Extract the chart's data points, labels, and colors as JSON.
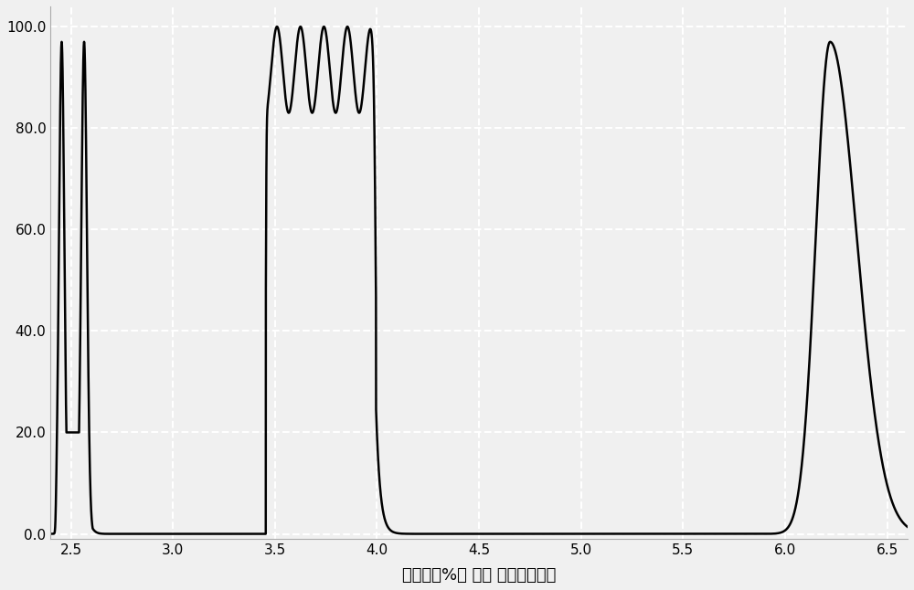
{
  "xlabel": "透过率（%） 对应 波长（微米）",
  "xlim": [
    2.4,
    6.6
  ],
  "ylim": [
    -1,
    104
  ],
  "xticks": [
    2.5,
    3.0,
    3.5,
    4.0,
    4.5,
    5.0,
    5.5,
    6.0,
    6.5
  ],
  "yticks": [
    0.0,
    20.0,
    40.0,
    60.0,
    80.0,
    100.0
  ],
  "background_color": "#f0f0f0",
  "line_color": "#000000",
  "grid_color": "#ffffff",
  "figsize": [
    10.0,
    6.46
  ]
}
